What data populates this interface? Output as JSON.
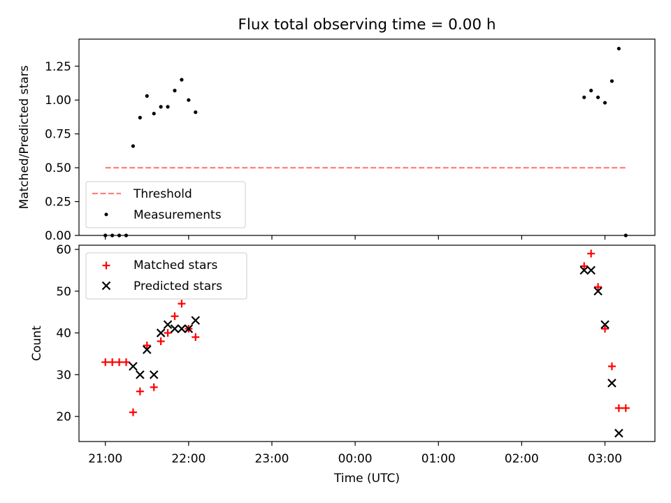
{
  "figure_title": "Flux total observing time = 0.00 h",
  "x_axis": {
    "label": "Time (UTC)",
    "tick_labels": [
      "21:00",
      "22:00",
      "23:00",
      "00:00",
      "01:00",
      "02:00",
      "03:00"
    ]
  },
  "colors": {
    "threshold": "#ff8080",
    "measurements": "#000000",
    "matched": "#ff0000",
    "predicted": "#000000"
  },
  "chart_data": [
    {
      "type": "scatter",
      "title": "Flux total observing time = 0.00 h",
      "xlabel": "",
      "ylabel": "Matched/Predicted stars",
      "xlim": [
        "20:41",
        "03:36"
      ],
      "ylim": [
        0,
        1.45
      ],
      "y_ticks": [
        "0.00",
        "0.25",
        "0.50",
        "0.75",
        "1.00",
        "1.25"
      ],
      "legend": {
        "placement": "lower-left",
        "entries": [
          "Threshold",
          "Measurements"
        ]
      },
      "series": [
        {
          "name": "Threshold",
          "kind": "dashed-line",
          "x": [
            "21:00",
            "03:15"
          ],
          "y": [
            0.5,
            0.5
          ]
        },
        {
          "name": "Measurements",
          "kind": "dot",
          "x": [
            "21:00",
            "21:05",
            "21:10",
            "21:15",
            "21:20",
            "21:25",
            "21:30",
            "21:35",
            "21:40",
            "21:45",
            "21:50",
            "21:55",
            "22:00",
            "22:05",
            "02:45",
            "02:50",
            "02:55",
            "03:00",
            "03:05",
            "03:10",
            "03:15"
          ],
          "y": [
            0.0,
            0.0,
            0.0,
            0.0,
            0.66,
            0.87,
            1.03,
            0.9,
            0.95,
            0.95,
            1.07,
            1.15,
            1.0,
            0.91,
            1.02,
            1.07,
            1.02,
            0.98,
            1.14,
            1.38,
            0.0
          ]
        }
      ]
    },
    {
      "type": "scatter",
      "xlabel": "Time (UTC)",
      "ylabel": "Count",
      "xlim": [
        "20:41",
        "03:36"
      ],
      "ylim": [
        14,
        61
      ],
      "y_ticks": [
        "20",
        "30",
        "40",
        "50",
        "60"
      ],
      "legend": {
        "placement": "top-left",
        "entries": [
          "Matched stars",
          "Predicted stars"
        ]
      },
      "series": [
        {
          "name": "Matched stars",
          "kind": "plus",
          "x": [
            "21:00",
            "21:05",
            "21:10",
            "21:15",
            "21:20",
            "21:25",
            "21:30",
            "21:35",
            "21:40",
            "21:45",
            "21:50",
            "21:55",
            "22:00",
            "22:05",
            "02:45",
            "02:50",
            "02:55",
            "03:00",
            "03:05",
            "03:10",
            "03:15"
          ],
          "y": [
            33,
            33,
            33,
            33,
            21,
            26,
            37,
            27,
            38,
            40,
            44,
            47,
            41,
            39,
            56,
            59,
            51,
            41,
            32,
            22,
            22
          ]
        },
        {
          "name": "Predicted stars",
          "kind": "cross",
          "x": [
            "21:20",
            "21:25",
            "21:30",
            "21:35",
            "21:40",
            "21:45",
            "21:50",
            "21:55",
            "22:00",
            "22:05",
            "02:45",
            "02:50",
            "02:55",
            "03:00",
            "03:05",
            "03:10"
          ],
          "y": [
            32,
            30,
            36,
            30,
            40,
            42,
            41,
            41,
            41,
            43,
            55,
            55,
            50,
            42,
            28,
            16
          ]
        }
      ]
    }
  ]
}
